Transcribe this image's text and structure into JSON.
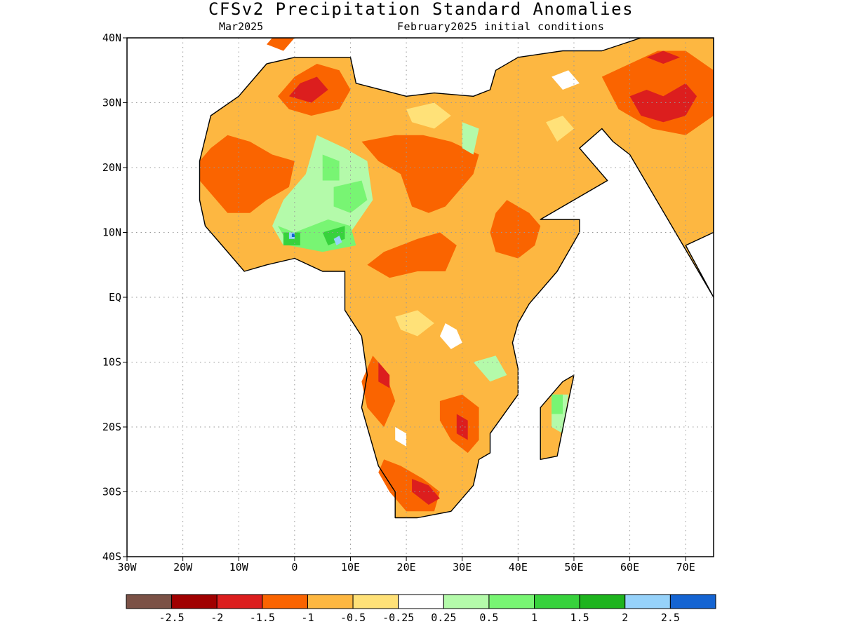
{
  "title": "CFSv2 Precipitation Standard Anomalies",
  "subtitle_left": "Mar2025",
  "subtitle_right": "February2025 initial conditions",
  "lat_labels": [
    "40N",
    "30N",
    "20N",
    "10N",
    "EQ",
    "10S",
    "20S",
    "30S",
    "40S"
  ],
  "lat_values": [
    40,
    30,
    20,
    10,
    0,
    -10,
    -20,
    -30,
    -40
  ],
  "lon_labels": [
    "30W",
    "20W",
    "10W",
    "0",
    "10E",
    "20E",
    "30E",
    "40E",
    "50E",
    "60E",
    "70E"
  ],
  "lon_values": [
    -30,
    -20,
    -10,
    0,
    10,
    20,
    30,
    40,
    50,
    60,
    70
  ],
  "lon_range": [
    -30,
    75
  ],
  "lat_range": [
    -40,
    40
  ],
  "colorbar": {
    "colors": [
      "#7b5146",
      "#a00000",
      "#dc1e1e",
      "#fa6400",
      "#fdb741",
      "#ffe178",
      "#ffffff",
      "#b4faaa",
      "#78f573",
      "#37d23c",
      "#1eb41e",
      "#96d2fa",
      "#1464d2"
    ],
    "labels": [
      "-2.5",
      "-2",
      "-1.5",
      "-1",
      "-0.5",
      "-0.25",
      "0.25",
      "0.5",
      "1",
      "1.5",
      "2",
      "2.5"
    ]
  },
  "anomaly_regions": [
    {
      "category": "-0.5",
      "color": "#fdb741",
      "points": [
        [
          -17,
          21
        ],
        [
          -15,
          28
        ],
        [
          -10,
          31
        ],
        [
          -5,
          36
        ],
        [
          0,
          37
        ],
        [
          10,
          37
        ],
        [
          11,
          33
        ],
        [
          20,
          31
        ],
        [
          25,
          31.5
        ],
        [
          32,
          31
        ],
        [
          35,
          32
        ],
        [
          36,
          35
        ],
        [
          40,
          37
        ],
        [
          48,
          38
        ],
        [
          55,
          38
        ],
        [
          62,
          40
        ],
        [
          75,
          40
        ],
        [
          75,
          10
        ],
        [
          70,
          8
        ],
        [
          75,
          0
        ],
        [
          60,
          22
        ],
        [
          57,
          24
        ],
        [
          55,
          26
        ],
        [
          51,
          23
        ],
        [
          56,
          18
        ],
        [
          52,
          16
        ],
        [
          44,
          12
        ],
        [
          51,
          12
        ],
        [
          51,
          10
        ],
        [
          47,
          4
        ],
        [
          42,
          -1
        ],
        [
          40,
          -4
        ],
        [
          39,
          -7
        ],
        [
          40,
          -11
        ],
        [
          40,
          -15
        ],
        [
          35,
          -21
        ],
        [
          35,
          -24
        ],
        [
          33,
          -25
        ],
        [
          32,
          -29
        ],
        [
          28,
          -33
        ],
        [
          22,
          -34
        ],
        [
          18,
          -34
        ],
        [
          18,
          -30
        ],
        [
          15,
          -26
        ],
        [
          12,
          -17
        ],
        [
          13,
          -12
        ],
        [
          12,
          -6
        ],
        [
          9,
          -2
        ],
        [
          9,
          4
        ],
        [
          5,
          4
        ],
        [
          0,
          6
        ],
        [
          -5,
          5
        ],
        [
          -9,
          4
        ],
        [
          -13,
          8
        ],
        [
          -16,
          11
        ],
        [
          -17,
          15
        ]
      ]
    },
    {
      "category": "-0.5",
      "color": "#fdb741",
      "points": [
        [
          44,
          -25
        ],
        [
          47,
          -24.5
        ],
        [
          49,
          -16
        ],
        [
          50,
          -12
        ],
        [
          48,
          -13
        ],
        [
          44,
          -17
        ],
        [
          44,
          -22
        ]
      ]
    },
    {
      "category": "-1",
      "color": "#fa6400",
      "points": [
        [
          -17,
          21
        ],
        [
          -15,
          23
        ],
        [
          -12,
          25
        ],
        [
          -8,
          24
        ],
        [
          -4,
          22
        ],
        [
          0,
          21
        ],
        [
          -1,
          17
        ],
        [
          -5,
          15
        ],
        [
          -8,
          13
        ],
        [
          -12,
          13
        ],
        [
          -15,
          16
        ],
        [
          -17,
          18
        ]
      ]
    },
    {
      "category": "-1",
      "color": "#fa6400",
      "points": [
        [
          -3,
          31
        ],
        [
          0,
          34
        ],
        [
          4,
          36
        ],
        [
          8,
          35
        ],
        [
          10,
          32
        ],
        [
          8,
          29
        ],
        [
          3,
          28
        ],
        [
          -1,
          29
        ]
      ]
    },
    {
      "category": "-1",
      "color": "#fa6400",
      "points": [
        [
          12,
          24
        ],
        [
          15,
          21
        ],
        [
          19,
          19
        ],
        [
          21,
          14
        ],
        [
          24,
          13
        ],
        [
          27,
          14
        ],
        [
          29,
          16
        ],
        [
          32,
          19
        ],
        [
          33,
          22
        ],
        [
          28,
          24
        ],
        [
          23,
          25
        ],
        [
          18,
          25
        ]
      ]
    },
    {
      "category": "-1",
      "color": "#fa6400",
      "points": [
        [
          36,
          13
        ],
        [
          38,
          15
        ],
        [
          42,
          13
        ],
        [
          44,
          11
        ],
        [
          43,
          8
        ],
        [
          40,
          6
        ],
        [
          36,
          7
        ],
        [
          35,
          10
        ]
      ]
    },
    {
      "category": "-1",
      "color": "#fa6400",
      "points": [
        [
          13,
          5
        ],
        [
          16,
          7
        ],
        [
          19,
          8
        ],
        [
          22,
          9
        ],
        [
          26,
          10
        ],
        [
          29,
          8
        ],
        [
          27,
          4
        ],
        [
          22,
          4
        ],
        [
          17,
          3
        ]
      ]
    },
    {
      "category": "-1",
      "color": "#fa6400",
      "points": [
        [
          14,
          -9
        ],
        [
          16,
          -11
        ],
        [
          18,
          -16
        ],
        [
          16,
          -20
        ],
        [
          13,
          -17
        ],
        [
          12,
          -13
        ]
      ]
    },
    {
      "category": "-1",
      "color": "#fa6400",
      "points": [
        [
          26,
          -16
        ],
        [
          30,
          -15
        ],
        [
          33,
          -17
        ],
        [
          33,
          -22
        ],
        [
          31,
          -24
        ],
        [
          28,
          -22
        ],
        [
          26,
          -19
        ]
      ]
    },
    {
      "category": "-1",
      "color": "#fa6400",
      "points": [
        [
          16,
          -25
        ],
        [
          19,
          -26
        ],
        [
          23,
          -28
        ],
        [
          26,
          -30
        ],
        [
          25,
          -33
        ],
        [
          20,
          -33
        ],
        [
          17,
          -30
        ],
        [
          15,
          -27
        ]
      ]
    },
    {
      "category": "-1",
      "color": "#fa6400",
      "points": [
        [
          55,
          34
        ],
        [
          60,
          36
        ],
        [
          65,
          38
        ],
        [
          70,
          38
        ],
        [
          75,
          35
        ],
        [
          75,
          28
        ],
        [
          70,
          25
        ],
        [
          64,
          26
        ],
        [
          58,
          29
        ]
      ]
    },
    {
      "category": "-1",
      "color": "#fa6400",
      "points": [
        [
          -5,
          39
        ],
        [
          -2,
          38
        ],
        [
          0,
          40
        ],
        [
          -4,
          40
        ]
      ]
    },
    {
      "category": "-1.5",
      "color": "#dc1e1e",
      "points": [
        [
          -1,
          31
        ],
        [
          1,
          33
        ],
        [
          4,
          34
        ],
        [
          6,
          32
        ],
        [
          3,
          30
        ]
      ]
    },
    {
      "category": "-1.5",
      "color": "#dc1e1e",
      "points": [
        [
          21,
          -28
        ],
        [
          24,
          -29
        ],
        [
          26,
          -31
        ],
        [
          24,
          -32
        ],
        [
          21,
          -30
        ]
      ]
    },
    {
      "category": "-1.5",
      "color": "#dc1e1e",
      "points": [
        [
          29,
          -18
        ],
        [
          31,
          -19
        ],
        [
          31,
          -22
        ],
        [
          29,
          -21
        ]
      ]
    },
    {
      "category": "-1.5",
      "color": "#dc1e1e",
      "points": [
        [
          60,
          31
        ],
        [
          63,
          32
        ],
        [
          66,
          31
        ],
        [
          70,
          33
        ],
        [
          72,
          31
        ],
        [
          70,
          28
        ],
        [
          66,
          27
        ],
        [
          62,
          28
        ]
      ]
    },
    {
      "category": "-1.5",
      "color": "#dc1e1e",
      "points": [
        [
          63,
          37
        ],
        [
          66,
          38
        ],
        [
          69,
          37
        ],
        [
          66,
          36
        ]
      ]
    },
    {
      "category": "-1.5",
      "color": "#dc1e1e",
      "points": [
        [
          15,
          -10
        ],
        [
          17,
          -12
        ],
        [
          17,
          -14
        ],
        [
          15,
          -13
        ]
      ]
    },
    {
      "category": "-0.25",
      "color": "#ffe178",
      "points": [
        [
          20,
          29
        ],
        [
          25,
          30
        ],
        [
          28,
          28
        ],
        [
          25,
          26
        ],
        [
          21,
          27
        ]
      ]
    },
    {
      "category": "-0.25",
      "color": "#ffe178",
      "points": [
        [
          18,
          -3
        ],
        [
          22,
          -2
        ],
        [
          25,
          -4
        ],
        [
          22,
          -6
        ],
        [
          19,
          -5
        ]
      ]
    },
    {
      "category": "-0.25",
      "color": "#ffe178",
      "points": [
        [
          45,
          27
        ],
        [
          48,
          28
        ],
        [
          50,
          26
        ],
        [
          47,
          24
        ]
      ]
    },
    {
      "category": "0.25",
      "color": "#ffffff",
      "points": [
        [
          27,
          -4
        ],
        [
          29,
          -5
        ],
        [
          30,
          -7
        ],
        [
          28,
          -8
        ],
        [
          26,
          -6
        ]
      ]
    },
    {
      "category": "0.25",
      "color": "#ffffff",
      "points": [
        [
          46,
          34
        ],
        [
          49,
          35
        ],
        [
          51,
          33
        ],
        [
          48,
          32
        ]
      ]
    },
    {
      "category": "0.25",
      "color": "#ffffff",
      "points": [
        [
          18,
          -20
        ],
        [
          20,
          -21
        ],
        [
          20,
          -23
        ],
        [
          18,
          -22
        ]
      ]
    },
    {
      "category": "0.5",
      "color": "#b4faaa",
      "points": [
        [
          4,
          25
        ],
        [
          9,
          23
        ],
        [
          13,
          21
        ],
        [
          14,
          15
        ],
        [
          10,
          10
        ],
        [
          4,
          8
        ],
        [
          -2,
          8
        ],
        [
          -4,
          11
        ],
        [
          -2,
          15
        ],
        [
          2,
          19
        ]
      ]
    },
    {
      "category": "0.5",
      "color": "#b4faaa",
      "points": [
        [
          30,
          27
        ],
        [
          33,
          26
        ],
        [
          32,
          22
        ],
        [
          30,
          23
        ]
      ]
    },
    {
      "category": "0.5",
      "color": "#b4faaa",
      "points": [
        [
          32,
          -10
        ],
        [
          36,
          -9
        ],
        [
          38,
          -12
        ],
        [
          35,
          -13
        ]
      ]
    },
    {
      "category": "0.5",
      "color": "#b4faaa",
      "points": [
        [
          46,
          -15
        ],
        [
          49,
          -15
        ],
        [
          48,
          -21
        ],
        [
          46,
          -20
        ]
      ]
    },
    {
      "category": "1",
      "color": "#78f573",
      "points": [
        [
          5,
          22
        ],
        [
          8,
          21
        ],
        [
          8,
          18
        ],
        [
          5,
          18
        ]
      ]
    },
    {
      "category": "1",
      "color": "#78f573",
      "points": [
        [
          7,
          17
        ],
        [
          12,
          18
        ],
        [
          13,
          15
        ],
        [
          10,
          13
        ],
        [
          7,
          14
        ]
      ]
    },
    {
      "category": "1",
      "color": "#78f573",
      "points": [
        [
          -3,
          11
        ],
        [
          0,
          10
        ],
        [
          6,
          12
        ],
        [
          10,
          11
        ],
        [
          11,
          8
        ],
        [
          5,
          7
        ],
        [
          -1,
          8
        ]
      ]
    },
    {
      "category": "1",
      "color": "#78f573",
      "points": [
        [
          46,
          -15
        ],
        [
          48,
          -15
        ],
        [
          48,
          -18
        ],
        [
          46,
          -18
        ]
      ]
    },
    {
      "category": "1.5",
      "color": "#37d23c",
      "points": [
        [
          -2,
          10
        ],
        [
          1,
          10
        ],
        [
          1,
          8
        ],
        [
          -2,
          8
        ]
      ]
    },
    {
      "category": "1.5",
      "color": "#37d23c",
      "points": [
        [
          5,
          10
        ],
        [
          9,
          11
        ],
        [
          9,
          9
        ],
        [
          6,
          8
        ]
      ]
    },
    {
      "category": "2",
      "color": "#96d2fa",
      "points": [
        [
          -1,
          10
        ],
        [
          0,
          10
        ],
        [
          0,
          9
        ],
        [
          -1,
          9
        ]
      ]
    },
    {
      "category": "2",
      "color": "#96d2fa",
      "points": [
        [
          7,
          9
        ],
        [
          8,
          9.5
        ],
        [
          8.5,
          8.5
        ],
        [
          7.5,
          8
        ]
      ]
    },
    {
      "category": "2.5",
      "color": "#1464d2",
      "points": [
        [
          -0.5,
          9.8
        ],
        [
          0,
          9.8
        ],
        [
          0,
          9.3
        ],
        [
          -0.5,
          9.3
        ]
      ]
    }
  ]
}
